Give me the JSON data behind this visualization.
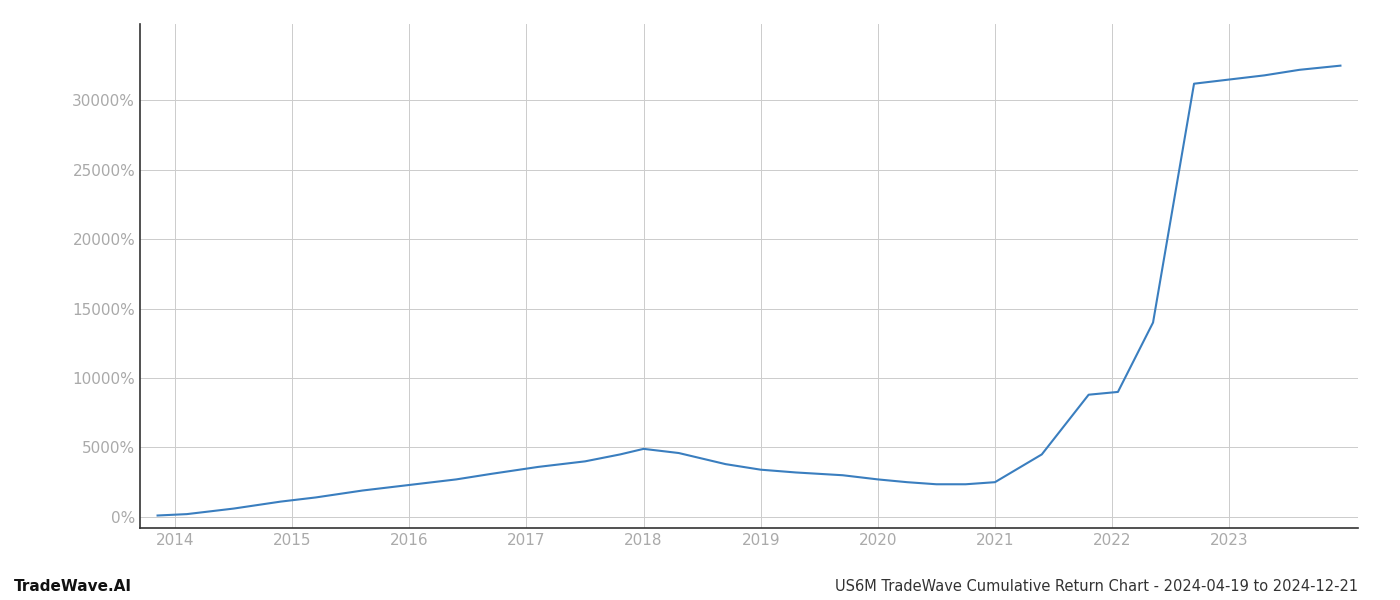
{
  "title": "US6M TradeWave Cumulative Return Chart - 2024-04-19 to 2024-12-21",
  "watermark": "TradeWave.AI",
  "line_color": "#3a7ebf",
  "background_color": "#ffffff",
  "grid_color": "#cccccc",
  "x_values": [
    2013.85,
    2014.1,
    2014.5,
    2014.9,
    2015.2,
    2015.6,
    2016.0,
    2016.4,
    2016.7,
    2017.1,
    2017.5,
    2017.8,
    2018.0,
    2018.3,
    2018.7,
    2019.0,
    2019.3,
    2019.7,
    2020.0,
    2020.25,
    2020.5,
    2020.75,
    2021.0,
    2021.4,
    2021.8,
    2022.05,
    2022.35,
    2022.7,
    2023.0,
    2023.3,
    2023.6,
    2023.95
  ],
  "y_values": [
    100,
    200,
    600,
    1100,
    1400,
    1900,
    2300,
    2700,
    3100,
    3600,
    4000,
    4500,
    4900,
    4600,
    3800,
    3400,
    3200,
    3000,
    2700,
    2500,
    2350,
    2350,
    2500,
    4500,
    8800,
    9000,
    14000,
    31200,
    31500,
    31800,
    32200,
    32500
  ],
  "xlim": [
    2013.7,
    2024.1
  ],
  "ylim": [
    -800,
    35500
  ],
  "yticks": [
    0,
    5000,
    10000,
    15000,
    20000,
    25000,
    30000
  ],
  "xticks": [
    2014,
    2015,
    2016,
    2017,
    2018,
    2019,
    2020,
    2021,
    2022,
    2023
  ],
  "line_width": 1.5,
  "fig_width": 14.0,
  "fig_height": 6.0,
  "left_spine_color": "#333333",
  "bottom_spine_color": "#333333",
  "tick_color": "#aaaaaa",
  "title_color": "#333333",
  "title_fontsize": 10.5,
  "watermark_fontsize": 11,
  "tick_fontsize": 11
}
